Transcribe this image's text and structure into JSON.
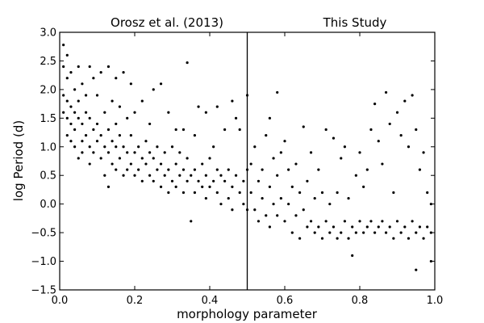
{
  "chart_data": {
    "type": "scatter",
    "xlabel": "morphology parameter",
    "ylabel": "log Period (d)",
    "xlim": [
      0.0,
      1.0
    ],
    "ylim": [
      -1.5,
      3.0
    ],
    "x_ticks": [
      "0.0",
      "0.2",
      "0.4",
      "0.6",
      "0.8",
      "1.0"
    ],
    "y_ticks": [
      "−1.5",
      "−1.0",
      "−0.5",
      "0.0",
      "0.5",
      "1.0",
      "1.5",
      "2.0",
      "2.5",
      "3.0"
    ],
    "divider_x": 0.5,
    "grid": false,
    "legend": "none",
    "panel_titles": {
      "left": "Orosz et al. (2013)",
      "right": "This Study"
    },
    "marker_color": "#000000",
    "series": [
      {
        "points": [
          [
            0.01,
            2.78
          ],
          [
            0.01,
            2.4
          ],
          [
            0.01,
            1.9
          ],
          [
            0.01,
            1.6
          ],
          [
            0.02,
            2.6
          ],
          [
            0.02,
            2.2
          ],
          [
            0.02,
            1.8
          ],
          [
            0.02,
            1.5
          ],
          [
            0.02,
            1.2
          ],
          [
            0.03,
            2.3
          ],
          [
            0.03,
            1.7
          ],
          [
            0.03,
            1.4
          ],
          [
            0.03,
            1.1
          ],
          [
            0.04,
            2.0
          ],
          [
            0.04,
            1.6
          ],
          [
            0.04,
            1.3
          ],
          [
            0.04,
            1.0
          ],
          [
            0.05,
            2.4
          ],
          [
            0.05,
            1.8
          ],
          [
            0.05,
            1.5
          ],
          [
            0.05,
            0.8
          ],
          [
            0.06,
            2.1
          ],
          [
            0.06,
            1.4
          ],
          [
            0.06,
            1.1
          ],
          [
            0.06,
            0.9
          ],
          [
            0.07,
            1.9
          ],
          [
            0.07,
            1.6
          ],
          [
            0.07,
            1.2
          ],
          [
            0.08,
            2.4
          ],
          [
            0.08,
            1.5
          ],
          [
            0.08,
            1.0
          ],
          [
            0.08,
            0.7
          ],
          [
            0.09,
            2.2
          ],
          [
            0.09,
            1.3
          ],
          [
            0.09,
            0.9
          ],
          [
            0.1,
            1.9
          ],
          [
            0.1,
            1.4
          ],
          [
            0.1,
            1.1
          ],
          [
            0.11,
            2.3
          ],
          [
            0.11,
            1.2
          ],
          [
            0.11,
            0.8
          ],
          [
            0.12,
            1.6
          ],
          [
            0.12,
            1.0
          ],
          [
            0.12,
            0.5
          ],
          [
            0.13,
            2.4
          ],
          [
            0.13,
            1.3
          ],
          [
            0.13,
            0.9
          ],
          [
            0.13,
            0.3
          ],
          [
            0.14,
            1.8
          ],
          [
            0.14,
            1.1
          ],
          [
            0.14,
            0.7
          ],
          [
            0.15,
            2.2
          ],
          [
            0.15,
            1.4
          ],
          [
            0.15,
            1.0
          ],
          [
            0.15,
            0.6
          ],
          [
            0.16,
            1.7
          ],
          [
            0.16,
            1.2
          ],
          [
            0.16,
            0.8
          ],
          [
            0.17,
            2.3
          ],
          [
            0.17,
            1.0
          ],
          [
            0.17,
            0.5
          ],
          [
            0.18,
            1.5
          ],
          [
            0.18,
            0.9
          ],
          [
            0.18,
            0.6
          ],
          [
            0.19,
            2.1
          ],
          [
            0.19,
            1.2
          ],
          [
            0.19,
            0.7
          ],
          [
            0.2,
            1.6
          ],
          [
            0.2,
            0.9
          ],
          [
            0.2,
            0.5
          ],
          [
            0.21,
            1.0
          ],
          [
            0.21,
            0.6
          ],
          [
            0.22,
            1.8
          ],
          [
            0.22,
            0.8
          ],
          [
            0.22,
            0.4
          ],
          [
            0.23,
            1.1
          ],
          [
            0.23,
            0.7
          ],
          [
            0.24,
            1.4
          ],
          [
            0.24,
            0.9
          ],
          [
            0.24,
            0.5
          ],
          [
            0.25,
            2.0
          ],
          [
            0.25,
            0.8
          ],
          [
            0.25,
            0.4
          ],
          [
            0.26,
            1.0
          ],
          [
            0.26,
            0.6
          ],
          [
            0.27,
            2.1
          ],
          [
            0.27,
            0.7
          ],
          [
            0.27,
            0.3
          ],
          [
            0.28,
            0.9
          ],
          [
            0.28,
            0.5
          ],
          [
            0.29,
            1.6
          ],
          [
            0.29,
            0.6
          ],
          [
            0.29,
            0.2
          ],
          [
            0.3,
            1.0
          ],
          [
            0.3,
            0.4
          ],
          [
            0.31,
            1.3
          ],
          [
            0.31,
            0.7
          ],
          [
            0.31,
            0.3
          ],
          [
            0.32,
            0.9
          ],
          [
            0.32,
            0.5
          ],
          [
            0.33,
            1.3
          ],
          [
            0.33,
            0.6
          ],
          [
            0.33,
            0.2
          ],
          [
            0.34,
            2.47
          ],
          [
            0.34,
            0.8
          ],
          [
            0.34,
            0.4
          ],
          [
            0.35,
            -0.3
          ],
          [
            0.35,
            0.5
          ],
          [
            0.36,
            1.2
          ],
          [
            0.36,
            0.6
          ],
          [
            0.36,
            0.2
          ],
          [
            0.37,
            1.7
          ],
          [
            0.37,
            0.4
          ],
          [
            0.38,
            0.7
          ],
          [
            0.38,
            0.3
          ],
          [
            0.39,
            1.6
          ],
          [
            0.39,
            0.5
          ],
          [
            0.39,
            0.1
          ],
          [
            0.4,
            0.8
          ],
          [
            0.4,
            0.3
          ],
          [
            0.41,
            1.0
          ],
          [
            0.41,
            0.4
          ],
          [
            0.42,
            1.7
          ],
          [
            0.42,
            0.6
          ],
          [
            0.42,
            0.2
          ],
          [
            0.43,
            0.5
          ],
          [
            0.43,
            0.0
          ],
          [
            0.44,
            1.3
          ],
          [
            0.44,
            0.4
          ],
          [
            0.45,
            0.6
          ],
          [
            0.45,
            0.1
          ],
          [
            0.46,
            1.8
          ],
          [
            0.46,
            0.3
          ],
          [
            0.46,
            -0.1
          ],
          [
            0.47,
            1.5
          ],
          [
            0.47,
            0.5
          ],
          [
            0.48,
            0.2
          ],
          [
            0.48,
            1.3
          ],
          [
            0.49,
            0.4
          ],
          [
            0.49,
            0.0
          ],
          [
            0.5,
            1.9
          ],
          [
            0.5,
            0.6
          ],
          [
            0.5,
            -0.1
          ]
        ]
      },
      {
        "points": [
          [
            0.51,
            0.7
          ],
          [
            0.51,
            0.2
          ],
          [
            0.52,
            1.0
          ],
          [
            0.52,
            -0.1
          ],
          [
            0.53,
            0.4
          ],
          [
            0.53,
            -0.3
          ],
          [
            0.54,
            0.6
          ],
          [
            0.54,
            0.1
          ],
          [
            0.55,
            1.2
          ],
          [
            0.55,
            -0.2
          ],
          [
            0.56,
            1.5
          ],
          [
            0.56,
            0.3
          ],
          [
            0.56,
            -0.4
          ],
          [
            0.57,
            0.8
          ],
          [
            0.57,
            0.0
          ],
          [
            0.58,
            1.95
          ],
          [
            0.58,
            0.5
          ],
          [
            0.58,
            -0.2
          ],
          [
            0.59,
            0.9
          ],
          [
            0.59,
            0.1
          ],
          [
            0.6,
            1.1
          ],
          [
            0.6,
            -0.3
          ],
          [
            0.61,
            0.6
          ],
          [
            0.61,
            0.0
          ],
          [
            0.62,
            0.3
          ],
          [
            0.62,
            -0.5
          ],
          [
            0.63,
            0.7
          ],
          [
            0.63,
            -0.2
          ],
          [
            0.64,
            0.2
          ],
          [
            0.64,
            -0.6
          ],
          [
            0.65,
            1.35
          ],
          [
            0.65,
            -0.1
          ],
          [
            0.66,
            0.4
          ],
          [
            0.66,
            -0.4
          ],
          [
            0.67,
            0.9
          ],
          [
            0.67,
            -0.3
          ],
          [
            0.68,
            0.1
          ],
          [
            0.68,
            -0.5
          ],
          [
            0.69,
            0.6
          ],
          [
            0.69,
            -0.4
          ],
          [
            0.7,
            0.2
          ],
          [
            0.7,
            -0.6
          ],
          [
            0.71,
            1.3
          ],
          [
            0.71,
            -0.3
          ],
          [
            0.72,
            -0.5
          ],
          [
            0.72,
            0.0
          ],
          [
            0.73,
            1.15
          ],
          [
            0.73,
            -0.4
          ],
          [
            0.74,
            -0.6
          ],
          [
            0.74,
            0.2
          ],
          [
            0.75,
            0.8
          ],
          [
            0.75,
            -0.5
          ],
          [
            0.76,
            1.0
          ],
          [
            0.76,
            -0.3
          ],
          [
            0.77,
            -0.6
          ],
          [
            0.77,
            0.1
          ],
          [
            0.78,
            -0.9
          ],
          [
            0.78,
            -0.4
          ],
          [
            0.79,
            0.5
          ],
          [
            0.79,
            -0.5
          ],
          [
            0.8,
            0.9
          ],
          [
            0.8,
            -0.3
          ],
          [
            0.81,
            0.3
          ],
          [
            0.81,
            -0.5
          ],
          [
            0.82,
            0.6
          ],
          [
            0.82,
            -0.4
          ],
          [
            0.83,
            1.3
          ],
          [
            0.83,
            -0.3
          ],
          [
            0.84,
            1.75
          ],
          [
            0.84,
            -0.5
          ],
          [
            0.85,
            1.1
          ],
          [
            0.85,
            -0.4
          ],
          [
            0.86,
            0.7
          ],
          [
            0.86,
            -0.3
          ],
          [
            0.87,
            1.95
          ],
          [
            0.87,
            -0.5
          ],
          [
            0.88,
            1.4
          ],
          [
            0.88,
            -0.4
          ],
          [
            0.89,
            0.2
          ],
          [
            0.89,
            -0.6
          ],
          [
            0.9,
            1.6
          ],
          [
            0.9,
            -0.3
          ],
          [
            0.91,
            1.2
          ],
          [
            0.91,
            -0.5
          ],
          [
            0.92,
            1.8
          ],
          [
            0.92,
            -0.4
          ],
          [
            0.93,
            1.0
          ],
          [
            0.93,
            -0.6
          ],
          [
            0.94,
            1.9
          ],
          [
            0.94,
            -0.3
          ],
          [
            0.95,
            -1.15
          ],
          [
            0.95,
            1.3
          ],
          [
            0.95,
            -0.5
          ],
          [
            0.96,
            0.6
          ],
          [
            0.96,
            -0.4
          ],
          [
            0.97,
            0.9
          ],
          [
            0.97,
            -0.6
          ],
          [
            0.98,
            0.2
          ],
          [
            0.98,
            -0.4
          ],
          [
            0.99,
            -1.0
          ],
          [
            0.99,
            0.0
          ],
          [
            0.99,
            -0.5
          ]
        ]
      }
    ]
  }
}
